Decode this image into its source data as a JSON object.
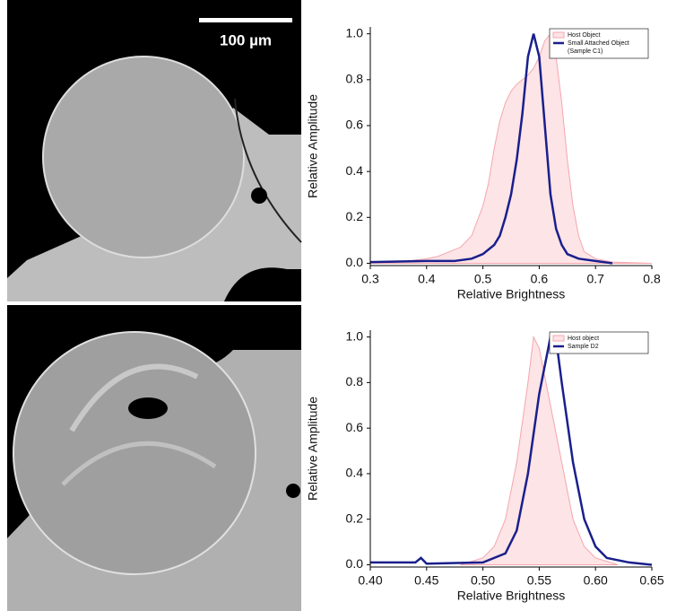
{
  "images": [
    {
      "scale_bar": "100 µm"
    }
  ],
  "chart_data": [
    {
      "type": "line",
      "xlabel": "Relative Brightness",
      "ylabel": "Relative Amplitude",
      "xlim": [
        0.3,
        0.8
      ],
      "ylim": [
        -0.01,
        1.03
      ],
      "xticks": [
        0.3,
        0.4,
        0.5,
        0.6,
        0.7,
        0.8
      ],
      "yticks": [
        {
          "value": 0,
          "label": "0.0"
        },
        0.2,
        0.4,
        0.6,
        0.8,
        {
          "value": 1,
          "label": "1.0"
        }
      ],
      "legend": "upper right",
      "series": [
        {
          "name": "Host Object",
          "color": "#f4a6ad",
          "style": "area",
          "x": [
            0.3,
            0.35,
            0.4,
            0.42,
            0.44,
            0.46,
            0.48,
            0.5,
            0.51,
            0.52,
            0.53,
            0.54,
            0.55,
            0.56,
            0.57,
            0.58,
            0.59,
            0.6,
            0.61,
            0.62,
            0.63,
            0.64,
            0.65,
            0.66,
            0.67,
            0.68,
            0.7,
            0.73,
            0.8
          ],
          "values": [
            0,
            0.005,
            0.02,
            0.03,
            0.05,
            0.07,
            0.12,
            0.25,
            0.35,
            0.5,
            0.62,
            0.7,
            0.75,
            0.78,
            0.8,
            0.82,
            0.85,
            0.9,
            0.97,
            1.0,
            0.9,
            0.7,
            0.45,
            0.25,
            0.12,
            0.05,
            0.02,
            0.005,
            0
          ]
        },
        {
          "name": "Small Attached Object (Sample C1)",
          "color": "#1a1f8c",
          "style": "line",
          "x": [
            0.3,
            0.4,
            0.45,
            0.48,
            0.5,
            0.52,
            0.53,
            0.54,
            0.55,
            0.56,
            0.57,
            0.58,
            0.59,
            0.6,
            0.61,
            0.62,
            0.63,
            0.64,
            0.65,
            0.67,
            0.7,
            0.73
          ],
          "values": [
            0.005,
            0.01,
            0.01,
            0.02,
            0.04,
            0.08,
            0.12,
            0.2,
            0.3,
            0.45,
            0.65,
            0.9,
            1.0,
            0.9,
            0.6,
            0.3,
            0.15,
            0.08,
            0.04,
            0.02,
            0.01,
            0
          ]
        }
      ]
    },
    {
      "type": "line",
      "xlabel": "Relative Brightness",
      "ylabel": "Relative Amplitude",
      "xlim": [
        0.4,
        0.65
      ],
      "ylim": [
        -0.01,
        1.03
      ],
      "xticks": [
        {
          "value": 0.4,
          "label": "0.40"
        },
        0.45,
        {
          "value": 0.5,
          "label": "0.50"
        },
        0.55,
        {
          "value": 0.6,
          "label": "0.60"
        },
        0.65
      ],
      "yticks": [
        {
          "value": 0,
          "label": "0.0"
        },
        0.2,
        0.4,
        0.6,
        0.8,
        {
          "value": 1,
          "label": "1.0"
        }
      ],
      "legend": "upper right",
      "series": [
        {
          "name": "Host object",
          "color": "#f4a6ad",
          "style": "area",
          "x": [
            0.48,
            0.5,
            0.51,
            0.52,
            0.53,
            0.54,
            0.545,
            0.55,
            0.56,
            0.57,
            0.58,
            0.59,
            0.6,
            0.62
          ],
          "values": [
            0,
            0.03,
            0.08,
            0.2,
            0.45,
            0.8,
            1.0,
            0.95,
            0.7,
            0.45,
            0.2,
            0.08,
            0.03,
            0
          ]
        },
        {
          "name": "Sample D2",
          "color": "#1a1f8c",
          "style": "line",
          "x": [
            0.4,
            0.44,
            0.445,
            0.45,
            0.5,
            0.52,
            0.53,
            0.54,
            0.55,
            0.56,
            0.565,
            0.57,
            0.58,
            0.59,
            0.6,
            0.61,
            0.63,
            0.65
          ],
          "values": [
            0.01,
            0.01,
            0.03,
            0.005,
            0.01,
            0.05,
            0.15,
            0.4,
            0.75,
            1.0,
            0.99,
            0.8,
            0.45,
            0.2,
            0.08,
            0.03,
            0.01,
            0
          ]
        }
      ]
    }
  ]
}
